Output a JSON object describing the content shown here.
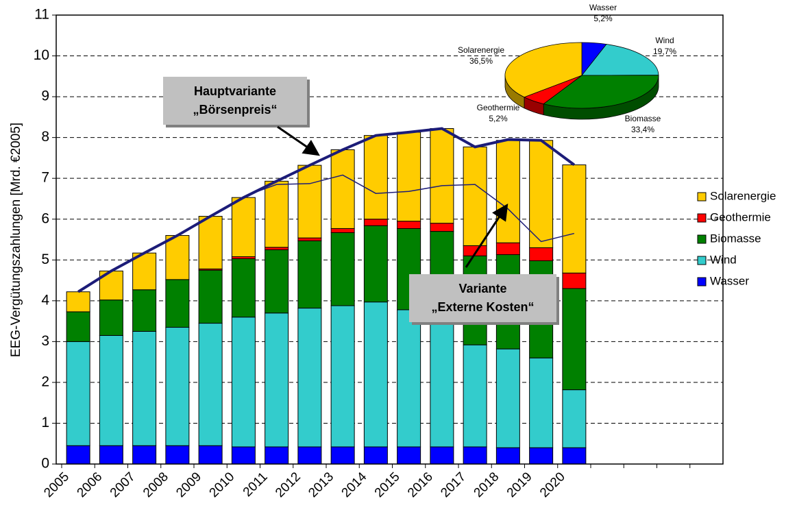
{
  "chart_data": [
    {
      "type": "bar",
      "ylabel": "EEG-Vergütungszahlungen [Mrd. €2005]",
      "categories": [
        "2005",
        "2006",
        "2007",
        "2008",
        "2009",
        "2010",
        "2011",
        "2012",
        "2013",
        "2014",
        "2015",
        "2016",
        "2017",
        "2018",
        "2019",
        "2020",
        null,
        null,
        null,
        null
      ],
      "series": [
        {
          "name": "Wasser",
          "color": "#0000ff",
          "values": [
            0.45,
            0.45,
            0.45,
            0.45,
            0.45,
            0.42,
            0.42,
            0.42,
            0.42,
            0.42,
            0.42,
            0.42,
            0.42,
            0.4,
            0.4,
            0.4,
            null,
            null,
            null,
            null
          ]
        },
        {
          "name": "Wind",
          "color": "#33cccc",
          "values": [
            2.55,
            2.7,
            2.8,
            2.9,
            3.0,
            3.18,
            3.28,
            3.4,
            3.46,
            3.55,
            3.36,
            3.18,
            2.5,
            2.42,
            2.2,
            1.42,
            null,
            null,
            null,
            null
          ]
        },
        {
          "name": "Biomasse",
          "color": "#008000",
          "values": [
            0.73,
            0.87,
            1.02,
            1.17,
            1.3,
            1.43,
            1.55,
            1.65,
            1.79,
            1.87,
            1.99,
            2.1,
            2.18,
            2.31,
            2.38,
            2.48,
            null,
            null,
            null,
            null
          ]
        },
        {
          "name": "Geothermie",
          "color": "#ff0000",
          "values": [
            0,
            0,
            0,
            0,
            0.03,
            0.05,
            0.06,
            0.07,
            0.1,
            0.16,
            0.18,
            0.2,
            0.25,
            0.29,
            0.32,
            0.38,
            null,
            null,
            null,
            null
          ]
        },
        {
          "name": "Solarenergie",
          "color": "#ffcc00",
          "values": [
            0.49,
            0.71,
            0.9,
            1.08,
            1.29,
            1.45,
            1.62,
            1.78,
            1.93,
            2.05,
            2.18,
            2.32,
            2.42,
            2.51,
            2.63,
            2.65,
            null,
            null,
            null,
            null
          ]
        }
      ],
      "lines": [
        {
          "label": [
            "Hauptvariante",
            "„Börsenpreis“"
          ],
          "color": "#1c1c78",
          "width": 4,
          "values": [
            4.22,
            4.73,
            5.17,
            5.6,
            6.07,
            6.53,
            6.93,
            7.32,
            7.7,
            8.05,
            8.13,
            8.22,
            7.77,
            7.95,
            7.93,
            7.33,
            null,
            null,
            null,
            null
          ]
        },
        {
          "label": [
            "Variante",
            "„Externe Kosten“"
          ],
          "color": "#1c1c78",
          "width": 1.5,
          "values": [
            4.22,
            4.73,
            5.17,
            5.6,
            6.07,
            6.55,
            6.85,
            6.87,
            7.08,
            6.63,
            6.68,
            6.82,
            6.85,
            6.25,
            5.45,
            5.65,
            null,
            null,
            null,
            null
          ]
        }
      ],
      "ylim": [
        0,
        11
      ],
      "yticks": [
        0,
        1,
        2,
        3,
        4,
        5,
        6,
        7,
        8,
        9,
        10,
        11
      ],
      "grid": true,
      "legend": "right"
    },
    {
      "type": "pie",
      "categories": [
        "Wasser",
        "Wind",
        "Biomasse",
        "Geothermie",
        "Solarenergie"
      ],
      "values": [
        5.2,
        19.7,
        33.4,
        5.2,
        36.5
      ],
      "value_labels": [
        "5,2%",
        "19,7%",
        "33,4%",
        "5,2%",
        "36,5%"
      ],
      "colors": [
        "#0000ff",
        "#33cccc",
        "#008000",
        "#ff0000",
        "#ffcc00"
      ]
    }
  ]
}
